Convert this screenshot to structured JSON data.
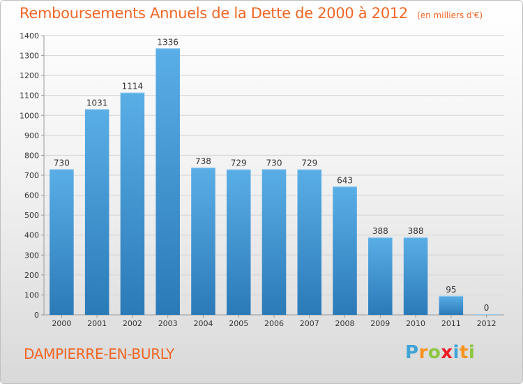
{
  "header": {
    "title": "Remboursements Annuels de la Dette de 2000 à 2012",
    "subtitle": "(en milliers d'€)"
  },
  "footer": {
    "commune": "DAMPIERRE-EN-BURLY",
    "brand": "Proxiti",
    "brand_colors": [
      "#3fa4d8",
      "#f7941d",
      "#8dc63f",
      "#ed1c24",
      "#3fa4d8",
      "#f7941d",
      "#8dc63f"
    ]
  },
  "colors": {
    "title": "#f26522",
    "bar_top": "#5aaee6",
    "bar_bottom": "#2a7ab8",
    "grid": "#d4d4d4",
    "axis_text": "#333333"
  },
  "chart_data": {
    "type": "bar",
    "categories": [
      "2000",
      "2001",
      "2002",
      "2003",
      "2004",
      "2005",
      "2006",
      "2007",
      "2008",
      "2009",
      "2010",
      "2011",
      "2012"
    ],
    "values": [
      730,
      1031,
      1114,
      1336,
      738,
      729,
      730,
      729,
      643,
      388,
      388,
      95,
      0
    ],
    "data_labels": [
      "730",
      "1031",
      "1114",
      "1336",
      "738",
      "729",
      "730",
      "729",
      "643",
      "388",
      "388",
      "95",
      "0"
    ],
    "ylim": [
      0,
      1400
    ],
    "yticks": [
      0,
      100,
      200,
      300,
      400,
      500,
      600,
      700,
      800,
      900,
      1000,
      1100,
      1200,
      1300,
      1400
    ],
    "grid": true,
    "legend": "none"
  }
}
